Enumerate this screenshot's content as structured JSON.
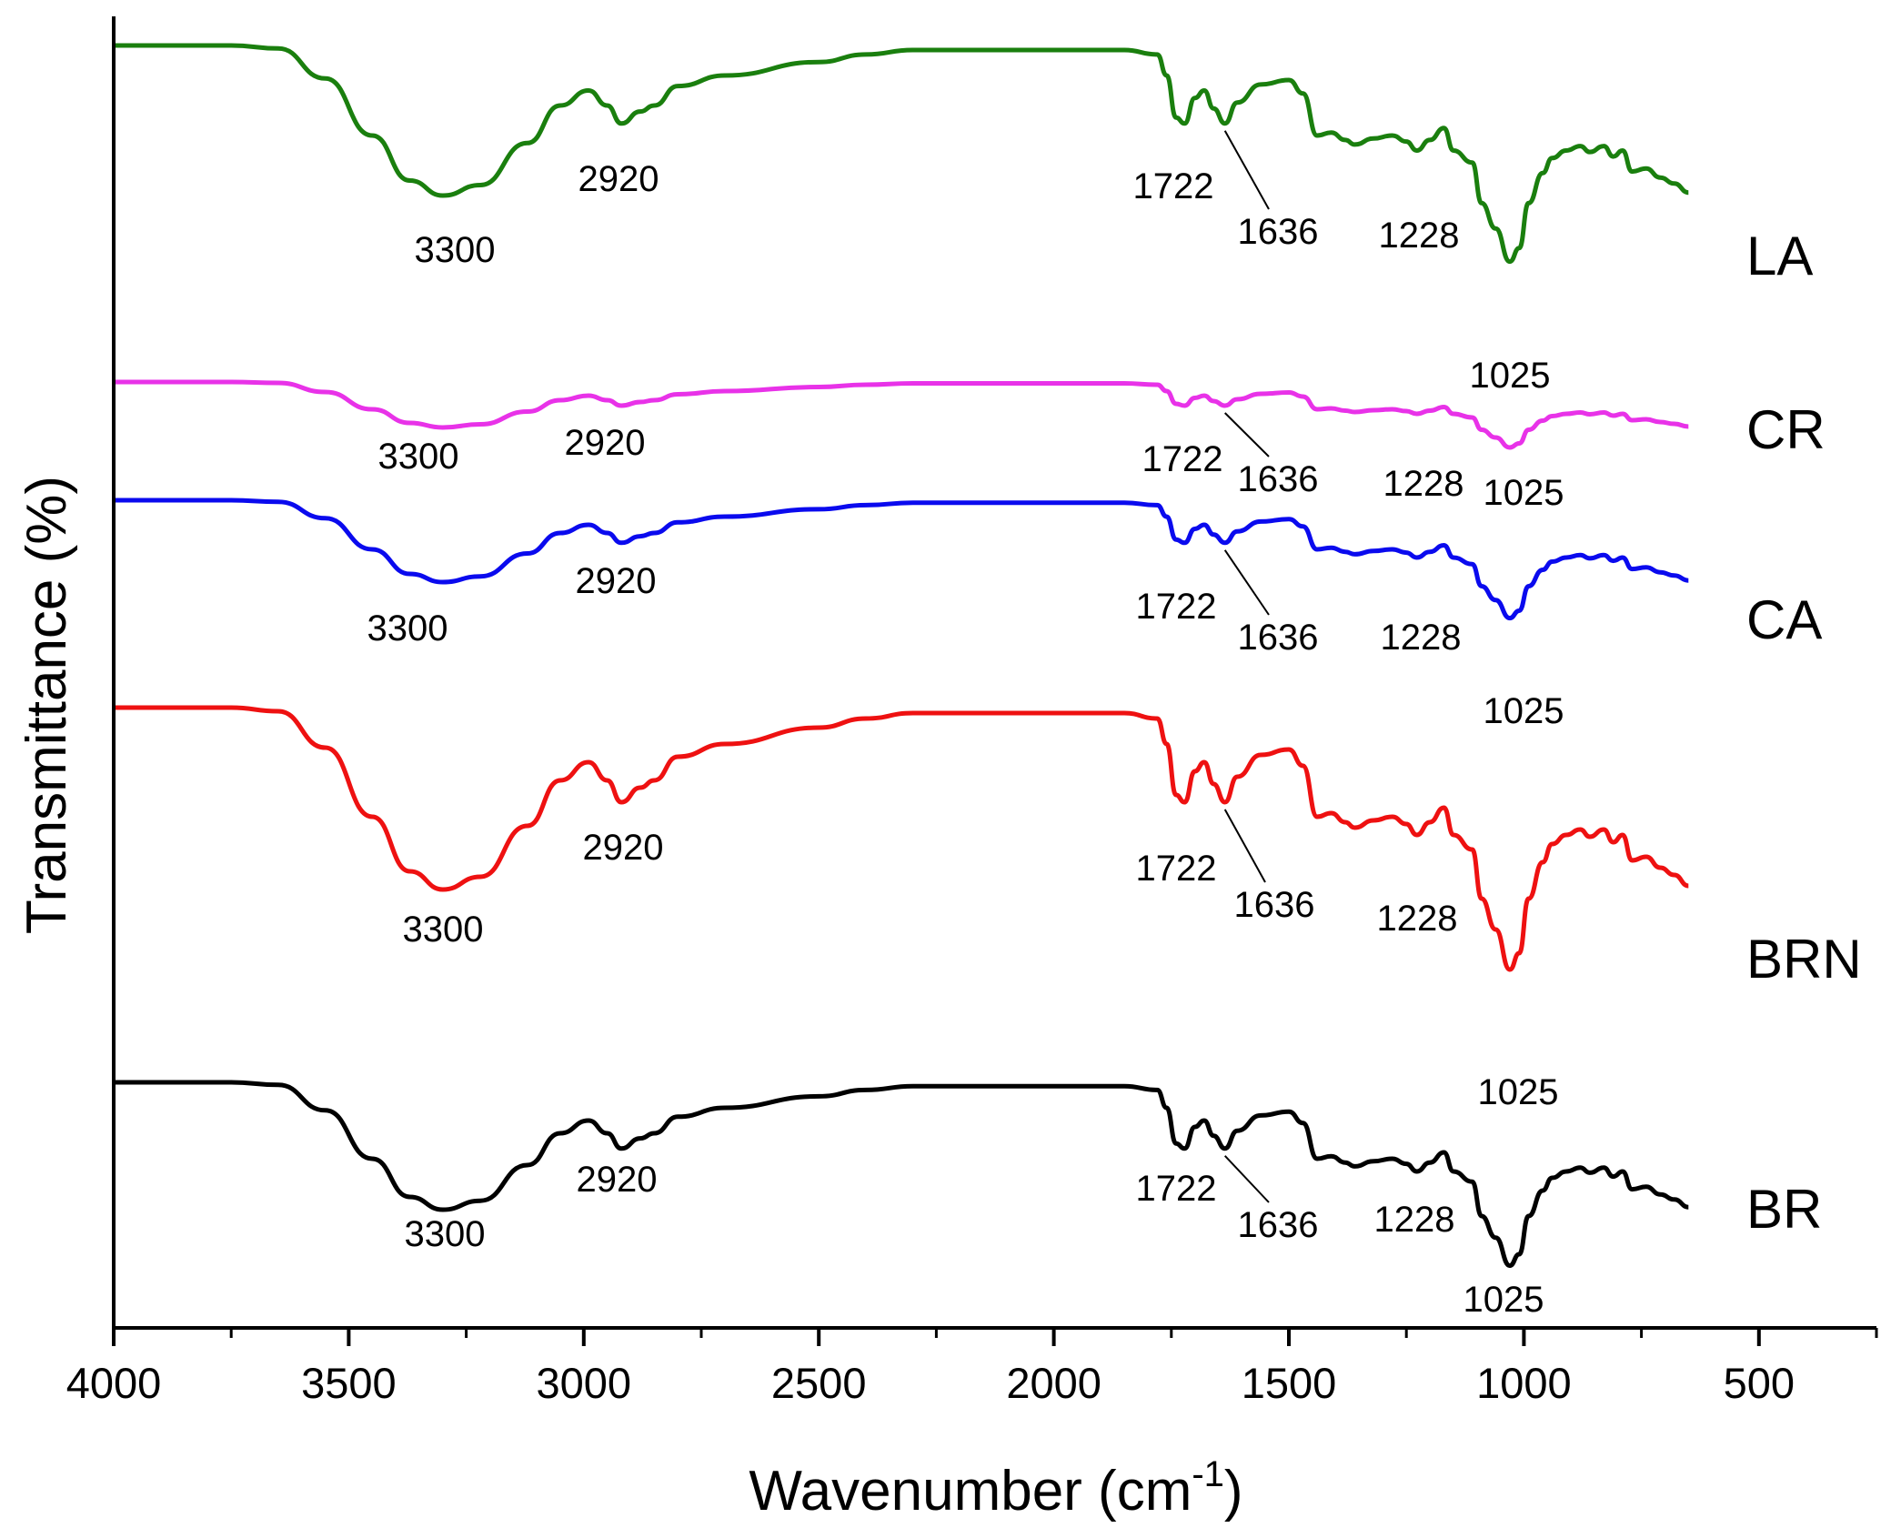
{
  "chart_data": {
    "type": "line",
    "title": "",
    "xlabel": "Wavenumber (cm",
    "xlabel_superscript": "-1",
    "xlabel_close": ")",
    "ylabel": "Transmittance (%)",
    "xlim": [
      4000,
      250
    ],
    "x_ticks": [
      4000,
      3500,
      3000,
      2500,
      2000,
      1500,
      1000,
      500
    ],
    "x_tick_labels": [
      "4000",
      "3500",
      "3000",
      "2500",
      "2000",
      "1500",
      "1000",
      "500"
    ],
    "y_ticks_shown": false,
    "x_range_of_spectra": [
      4000,
      650
    ],
    "series": [
      {
        "name": "LA",
        "color": "#1a7f0e",
        "offset": 0,
        "peaks": [
          {
            "wavenumber": 3300,
            "label": "3300"
          },
          {
            "wavenumber": 2920,
            "label": "2920"
          },
          {
            "wavenumber": 1722,
            "label": "1722"
          },
          {
            "wavenumber": 1636,
            "label": "1636"
          },
          {
            "wavenumber": 1228,
            "label": "1228"
          },
          {
            "wavenumber": 1025,
            "label": "1025"
          }
        ]
      },
      {
        "name": "CR",
        "color": "#e832e8",
        "offset": 1,
        "peaks": [
          {
            "wavenumber": 3300,
            "label": "3300"
          },
          {
            "wavenumber": 2920,
            "label": "2920"
          },
          {
            "wavenumber": 1722,
            "label": "1722"
          },
          {
            "wavenumber": 1636,
            "label": "1636"
          },
          {
            "wavenumber": 1228,
            "label": "1228"
          },
          {
            "wavenumber": 1025,
            "label": "1025"
          }
        ]
      },
      {
        "name": "CA",
        "color": "#0a0aee",
        "offset": 2,
        "peaks": [
          {
            "wavenumber": 3300,
            "label": "3300"
          },
          {
            "wavenumber": 2920,
            "label": "2920"
          },
          {
            "wavenumber": 1722,
            "label": "1722"
          },
          {
            "wavenumber": 1636,
            "label": "1636"
          },
          {
            "wavenumber": 1228,
            "label": "1228"
          },
          {
            "wavenumber": 1025,
            "label": "1025"
          }
        ]
      },
      {
        "name": "BRN",
        "color": "#ee1111",
        "offset": 3,
        "peaks": [
          {
            "wavenumber": 3300,
            "label": "3300"
          },
          {
            "wavenumber": 2920,
            "label": "2920"
          },
          {
            "wavenumber": 1722,
            "label": "1722"
          },
          {
            "wavenumber": 1636,
            "label": "1636"
          },
          {
            "wavenumber": 1228,
            "label": "1228"
          },
          {
            "wavenumber": 1025,
            "label": "1025"
          }
        ]
      },
      {
        "name": "BR",
        "color": "#000000",
        "offset": 4,
        "peaks": [
          {
            "wavenumber": 3300,
            "label": "3300"
          },
          {
            "wavenumber": 2920,
            "label": "2920"
          },
          {
            "wavenumber": 1722,
            "label": "1722"
          },
          {
            "wavenumber": 1636,
            "label": "1636"
          },
          {
            "wavenumber": 1228,
            "label": "1228"
          },
          {
            "wavenumber": 1025,
            "label": "1025"
          }
        ]
      }
    ]
  }
}
